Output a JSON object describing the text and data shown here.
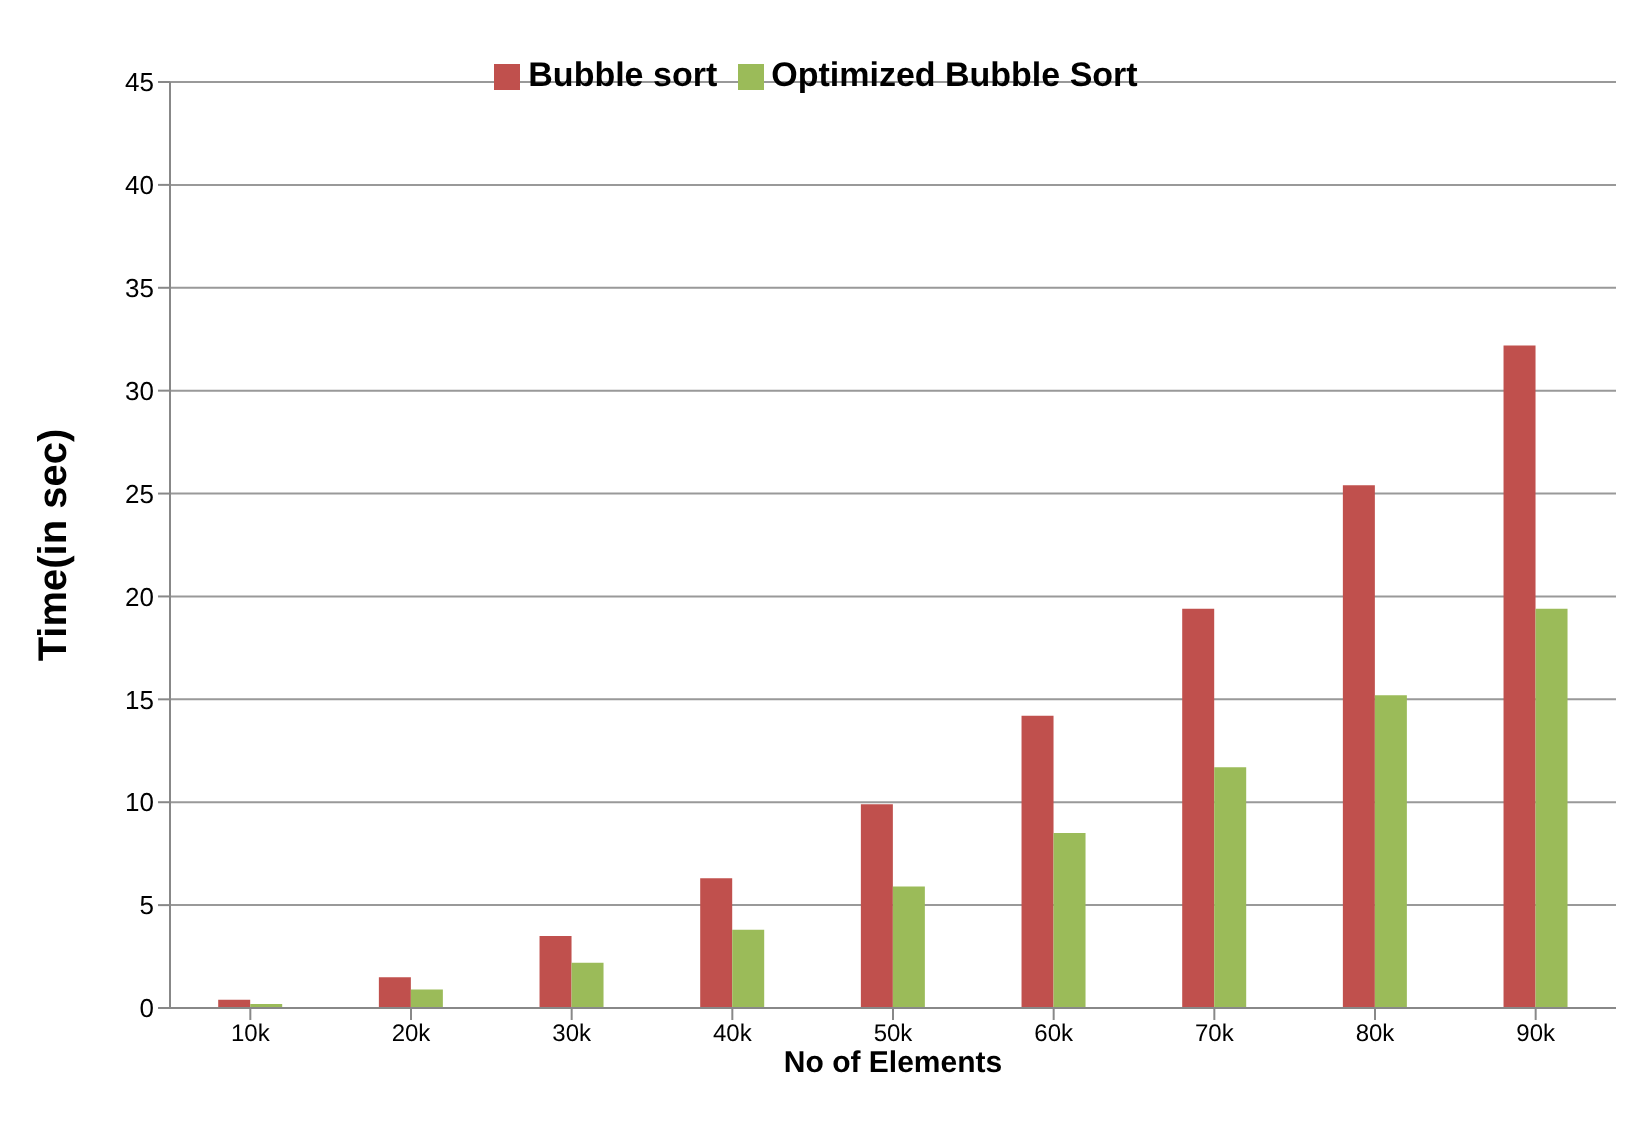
{
  "chart_data": {
    "type": "bar",
    "xlabel": "No of Elements",
    "ylabel": "Time(in sec)",
    "categories": [
      "10k",
      "20k",
      "30k",
      "40k",
      "50k",
      "60k",
      "70k",
      "80k",
      "90k"
    ],
    "series": [
      {
        "name": "Bubble sort",
        "color": "#c0504d",
        "values": [
          0.4,
          1.5,
          3.5,
          6.3,
          9.9,
          14.2,
          19.4,
          25.4,
          32.2
        ]
      },
      {
        "name": "Optimized Bubble Sort",
        "color": "#9bbb59",
        "values": [
          0.2,
          0.9,
          2.2,
          3.8,
          5.9,
          8.5,
          11.7,
          15.2,
          19.4
        ]
      }
    ],
    "ylim": [
      0,
      45
    ],
    "yticks": [
      0,
      5,
      10,
      15,
      20,
      25,
      30,
      35,
      40,
      45
    ],
    "grid": "y",
    "legend": "top"
  }
}
